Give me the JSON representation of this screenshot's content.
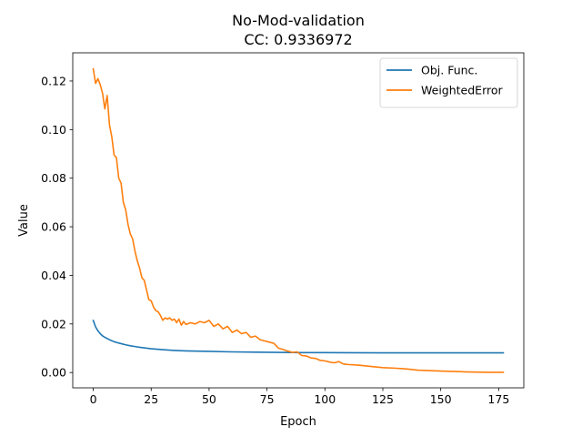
{
  "chart_data": {
    "type": "line",
    "title": "No-Mod-validation",
    "subtitle": "CC: 0.9336972",
    "xlabel": "Epoch",
    "ylabel": "Value",
    "xlim": [
      -8.85,
      185.85
    ],
    "ylim": [
      -0.0063,
      0.1316
    ],
    "x_ticks": [
      0,
      25,
      50,
      75,
      100,
      125,
      150,
      175
    ],
    "x_tick_labels": [
      "0",
      "25",
      "50",
      "75",
      "100",
      "125",
      "150",
      "175"
    ],
    "y_ticks": [
      0.0,
      0.02,
      0.04,
      0.06,
      0.08,
      0.1,
      0.12
    ],
    "y_tick_labels": [
      "0.00",
      "0.02",
      "0.04",
      "0.06",
      "0.08",
      "0.10",
      "0.12"
    ],
    "grid": false,
    "legend_position": "top-right",
    "series": [
      {
        "name": "Obj. Func.",
        "color": "#1f77b4",
        "x": [
          0,
          1,
          2,
          3,
          4,
          5,
          6,
          7,
          8,
          9,
          10,
          12,
          14,
          16,
          18,
          20,
          25,
          30,
          35,
          40,
          50,
          60,
          70,
          80,
          90,
          100,
          125,
          150,
          177
        ],
        "values": [
          0.0214,
          0.0188,
          0.0172,
          0.016,
          0.0151,
          0.0145,
          0.014,
          0.0135,
          0.0131,
          0.0127,
          0.0124,
          0.0119,
          0.0114,
          0.011,
          0.0107,
          0.0104,
          0.0098,
          0.0094,
          0.0091,
          0.0089,
          0.0087,
          0.0085,
          0.0084,
          0.0083,
          0.0082,
          0.0082,
          0.0081,
          0.0081,
          0.0081
        ]
      },
      {
        "name": "WeightedError",
        "color": "#ff7f0e",
        "x": [
          0,
          1,
          2,
          3,
          4,
          5,
          6,
          7,
          8,
          9,
          10,
          11,
          12,
          13,
          14,
          15,
          16,
          17,
          18,
          19,
          20,
          21,
          22,
          23,
          24,
          25,
          26,
          27,
          28,
          29,
          30,
          31,
          32,
          33,
          34,
          35,
          36,
          37,
          38,
          39,
          40,
          42,
          44,
          46,
          48,
          50,
          52,
          54,
          56,
          58,
          60,
          62,
          64,
          66,
          68,
          70,
          72,
          74,
          76,
          78,
          80,
          82,
          84,
          86,
          88,
          90,
          92,
          94,
          96,
          98,
          100,
          102,
          104,
          106,
          108,
          110,
          115,
          120,
          125,
          130,
          135,
          140,
          145,
          150,
          160,
          170,
          177
        ],
        "values": [
          0.125,
          0.119,
          0.121,
          0.1185,
          0.115,
          0.1085,
          0.114,
          0.102,
          0.097,
          0.0895,
          0.0885,
          0.08,
          0.078,
          0.07,
          0.067,
          0.061,
          0.057,
          0.055,
          0.05,
          0.046,
          0.043,
          0.039,
          0.038,
          0.034,
          0.03,
          0.0295,
          0.027,
          0.0255,
          0.025,
          0.0235,
          0.0215,
          0.0225,
          0.022,
          0.0225,
          0.0215,
          0.022,
          0.0205,
          0.022,
          0.0195,
          0.021,
          0.0198,
          0.0205,
          0.02,
          0.021,
          0.0205,
          0.0215,
          0.019,
          0.02,
          0.018,
          0.019,
          0.0165,
          0.0175,
          0.016,
          0.0165,
          0.0145,
          0.015,
          0.0135,
          0.013,
          0.0125,
          0.012,
          0.01,
          0.0095,
          0.0088,
          0.0083,
          0.0085,
          0.007,
          0.0068,
          0.006,
          0.0058,
          0.005,
          0.0048,
          0.0043,
          0.004,
          0.0045,
          0.0035,
          0.0033,
          0.003,
          0.0025,
          0.002,
          0.0018,
          0.0015,
          0.001,
          0.0008,
          0.0006,
          0.0003,
          0.0001,
          0.0001
        ]
      }
    ]
  }
}
